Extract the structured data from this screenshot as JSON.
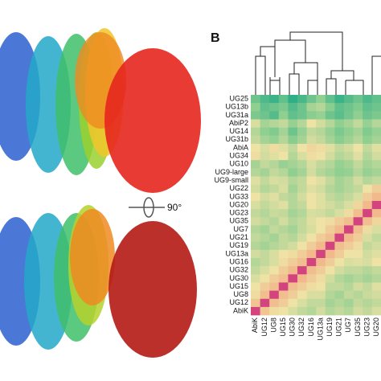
{
  "panel_label": "B",
  "rotation_label": "90°",
  "chart_data": {
    "type": "heatmap",
    "rows": [
      "UG25",
      "UG13b",
      "UG31a",
      "AbiP2",
      "UG14",
      "UG31b",
      "AbiA",
      "UG34",
      "UG10",
      "UG9-large",
      "UG9-small",
      "UG22",
      "UG33",
      "UG20",
      "UG23",
      "UG35",
      "UG7",
      "UG21",
      "UG19",
      "UG13a",
      "UG16",
      "UG32",
      "UG30",
      "UG15",
      "UG8",
      "UG12",
      "AbiK"
    ],
    "columns": [
      "AbiK",
      "UG12",
      "UG8",
      "UG15",
      "UG30",
      "UG32",
      "UG16",
      "UG13a",
      "UG19",
      "UG21",
      "UG7",
      "UG35",
      "UG23",
      "UG20"
    ],
    "values": [
      [
        0.3,
        0.25,
        0.22,
        0.28,
        0.2,
        0.24,
        0.3,
        0.35,
        0.28,
        0.22,
        0.26,
        0.3,
        0.25,
        0.28
      ],
      [
        0.35,
        0.28,
        0.3,
        0.32,
        0.26,
        0.3,
        0.38,
        0.4,
        0.34,
        0.28,
        0.3,
        0.33,
        0.28,
        0.3
      ],
      [
        0.32,
        0.3,
        0.26,
        0.35,
        0.28,
        0.3,
        0.34,
        0.36,
        0.3,
        0.27,
        0.31,
        0.35,
        0.3,
        0.32
      ],
      [
        0.45,
        0.38,
        0.4,
        0.42,
        0.36,
        0.4,
        0.48,
        0.44,
        0.4,
        0.35,
        0.38,
        0.42,
        0.36,
        0.4
      ],
      [
        0.4,
        0.35,
        0.33,
        0.38,
        0.3,
        0.36,
        0.42,
        0.4,
        0.36,
        0.32,
        0.35,
        0.38,
        0.33,
        0.36
      ],
      [
        0.42,
        0.38,
        0.36,
        0.4,
        0.34,
        0.38,
        0.44,
        0.42,
        0.38,
        0.34,
        0.37,
        0.4,
        0.35,
        0.38
      ],
      [
        0.48,
        0.45,
        0.5,
        0.46,
        0.42,
        0.48,
        0.52,
        0.5,
        0.46,
        0.42,
        0.44,
        0.48,
        0.42,
        0.46
      ],
      [
        0.5,
        0.44,
        0.46,
        0.48,
        0.4,
        0.45,
        0.5,
        0.48,
        0.44,
        0.4,
        0.42,
        0.46,
        0.4,
        0.44
      ],
      [
        0.38,
        0.42,
        0.4,
        0.36,
        0.38,
        0.4,
        0.45,
        0.42,
        0.4,
        0.36,
        0.38,
        0.42,
        0.38,
        0.4
      ],
      [
        0.4,
        0.38,
        0.42,
        0.4,
        0.35,
        0.38,
        0.44,
        0.4,
        0.38,
        0.35,
        0.36,
        0.4,
        0.36,
        0.38
      ],
      [
        0.46,
        0.42,
        0.45,
        0.44,
        0.4,
        0.42,
        0.48,
        0.46,
        0.42,
        0.38,
        0.4,
        0.44,
        0.4,
        0.42
      ],
      [
        0.44,
        0.4,
        0.42,
        0.45,
        0.38,
        0.42,
        0.46,
        0.44,
        0.4,
        0.38,
        0.4,
        0.42,
        0.48,
        0.55
      ],
      [
        0.48,
        0.44,
        0.46,
        0.42,
        0.4,
        0.44,
        0.48,
        0.46,
        0.42,
        0.4,
        0.42,
        0.45,
        0.55,
        0.62
      ],
      [
        0.45,
        0.42,
        0.44,
        0.46,
        0.4,
        0.42,
        0.48,
        0.46,
        0.44,
        0.42,
        0.45,
        0.52,
        0.62,
        1.0
      ],
      [
        0.42,
        0.4,
        0.43,
        0.42,
        0.38,
        0.4,
        0.45,
        0.44,
        0.42,
        0.45,
        0.5,
        0.6,
        1.0,
        0.62
      ],
      [
        0.44,
        0.42,
        0.4,
        0.44,
        0.4,
        0.42,
        0.46,
        0.48,
        0.5,
        0.55,
        0.6,
        1.0,
        0.6,
        0.52
      ],
      [
        0.4,
        0.38,
        0.42,
        0.4,
        0.38,
        0.42,
        0.45,
        0.48,
        0.55,
        0.62,
        1.0,
        0.6,
        0.5,
        0.45
      ],
      [
        0.42,
        0.4,
        0.38,
        0.42,
        0.4,
        0.44,
        0.48,
        0.55,
        0.6,
        1.0,
        0.62,
        0.55,
        0.45,
        0.42
      ],
      [
        0.4,
        0.38,
        0.4,
        0.42,
        0.44,
        0.48,
        0.55,
        0.62,
        1.0,
        0.6,
        0.55,
        0.5,
        0.42,
        0.44
      ],
      [
        0.44,
        0.42,
        0.45,
        0.48,
        0.5,
        0.55,
        0.62,
        1.0,
        0.62,
        0.55,
        0.48,
        0.48,
        0.44,
        0.46
      ],
      [
        0.4,
        0.42,
        0.45,
        0.5,
        0.55,
        0.6,
        1.0,
        0.62,
        0.55,
        0.48,
        0.45,
        0.46,
        0.45,
        0.48
      ],
      [
        0.42,
        0.45,
        0.48,
        0.55,
        0.62,
        1.0,
        0.6,
        0.55,
        0.48,
        0.44,
        0.42,
        0.42,
        0.4,
        0.42
      ],
      [
        0.45,
        0.48,
        0.55,
        0.6,
        1.0,
        0.62,
        0.55,
        0.5,
        0.44,
        0.4,
        0.38,
        0.4,
        0.38,
        0.4
      ],
      [
        0.48,
        0.55,
        0.6,
        1.0,
        0.6,
        0.55,
        0.5,
        0.48,
        0.42,
        0.42,
        0.4,
        0.44,
        0.42,
        0.46
      ],
      [
        0.5,
        0.6,
        1.0,
        0.6,
        0.55,
        0.48,
        0.45,
        0.45,
        0.4,
        0.38,
        0.42,
        0.4,
        0.43,
        0.44
      ],
      [
        0.58,
        1.0,
        0.6,
        0.55,
        0.48,
        0.45,
        0.42,
        0.42,
        0.38,
        0.4,
        0.38,
        0.42,
        0.4,
        0.42
      ],
      [
        1.0,
        0.58,
        0.5,
        0.48,
        0.45,
        0.42,
        0.4,
        0.44,
        0.4,
        0.42,
        0.4,
        0.44,
        0.42,
        0.45
      ]
    ],
    "colorscale": [
      [
        0.2,
        "#2fae88"
      ],
      [
        0.35,
        "#8fcf90"
      ],
      [
        0.48,
        "#eee2a4"
      ],
      [
        0.62,
        "#f2b98c"
      ],
      [
        1.0,
        "#d3447f"
      ]
    ]
  }
}
